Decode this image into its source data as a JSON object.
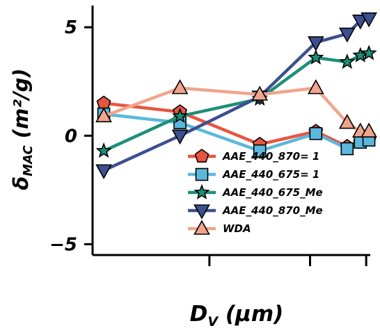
{
  "chart_data": {
    "type": "line",
    "xlabel": "D_V (µm)",
    "xlabel_main": "D",
    "xlabel_sub": "V",
    "xlabel_unit": " (µm)",
    "ylabel": "δMAC (m²/g)",
    "ylabel_symbol": "δ",
    "ylabel_sub": "MAC",
    "ylabel_unit": " (m²/g)",
    "ylim": [
      -5.5,
      6
    ],
    "yticks": [
      -5,
      0,
      5
    ],
    "ytick_labels": [
      "−5",
      "0",
      "5"
    ],
    "xlim": [
      0.06,
      2.75
    ],
    "xscale": "log",
    "x_tick_values": [
      0.3,
      1.2,
      2.6
    ],
    "legend_position": "bottom-right",
    "grid": false,
    "series": [
      {
        "name": "AAE_440_870= 1",
        "color": "#E8553F",
        "marker": "pentagon",
        "x": [
          0.07,
          0.2,
          0.6,
          1.3,
          2.0,
          2.4,
          2.7
        ],
        "y": [
          1.5,
          1.1,
          -0.4,
          0.2,
          -0.5,
          -0.3,
          -0.2
        ]
      },
      {
        "name": "AAE_440_675= 1",
        "color": "#5BB8DC",
        "marker": "square",
        "x": [
          0.07,
          0.2,
          0.6,
          1.3,
          2.0,
          2.4,
          2.7
        ],
        "y": [
          1.0,
          0.6,
          -0.7,
          0.1,
          -0.6,
          -0.3,
          -0.2
        ]
      },
      {
        "name": "AAE_440_675_Me",
        "color": "#1C8F78",
        "marker": "star",
        "x": [
          0.07,
          0.2,
          0.6,
          1.3,
          2.0,
          2.4,
          2.7
        ],
        "y": [
          -0.7,
          0.9,
          1.7,
          3.6,
          3.4,
          3.7,
          3.8
        ]
      },
      {
        "name": "AAE_440_870_Me",
        "color": "#3E4F8F",
        "marker": "triangle-down",
        "x": [
          0.07,
          0.2,
          0.6,
          1.3,
          2.0,
          2.4,
          2.7
        ],
        "y": [
          -1.6,
          0.0,
          1.8,
          4.3,
          4.7,
          5.3,
          5.4
        ]
      },
      {
        "name": "WDA",
        "color": "#F0A58C",
        "marker": "triangle-up",
        "x": [
          0.07,
          0.2,
          0.6,
          1.3,
          2.0,
          2.4,
          2.7
        ],
        "y": [
          0.9,
          2.2,
          1.9,
          2.2,
          0.6,
          0.2,
          0.2
        ]
      }
    ]
  }
}
